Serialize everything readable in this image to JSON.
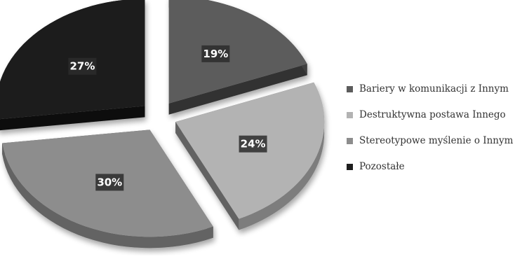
{
  "chart_data": {
    "type": "pie",
    "slices": [
      {
        "label": "Bariery w komunikacji z Innym",
        "value": 19,
        "value_label": "19%",
        "color": "#5c5c5c"
      },
      {
        "label": "Destruktywna postawa Innego",
        "value": 24,
        "value_label": "24%",
        "color": "#b3b3b3"
      },
      {
        "label": "Stereotypowe myślenie o Innym",
        "value": 30,
        "value_label": "30%",
        "color": "#8d8d8d"
      },
      {
        "label": "Pozostałe",
        "value": 27,
        "value_label": "27%",
        "color": "#1e1e1e"
      }
    ],
    "legend_position": "right",
    "exploded": true,
    "three_d": true
  }
}
